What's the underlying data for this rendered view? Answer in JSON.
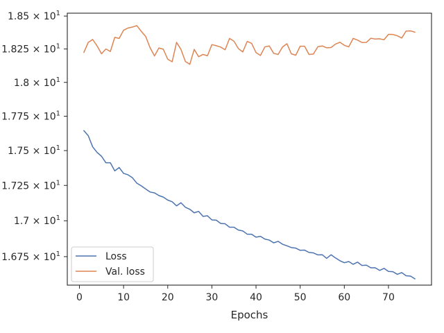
{
  "chart_data": {
    "type": "line",
    "title": "",
    "xlabel": "Epochs",
    "ylabel": "",
    "xlim": [
      -2.75,
      79.75
    ],
    "ylim": [
      16.554,
      18.522
    ],
    "x_ticks": [
      0,
      10,
      20,
      30,
      40,
      50,
      60,
      70
    ],
    "x_tick_labels": [
      "0",
      "10",
      "20",
      "30",
      "40",
      "50",
      "60",
      "70"
    ],
    "y_ticks": [
      16.75,
      17.0,
      17.25,
      17.5,
      17.75,
      18.0,
      18.25,
      18.5
    ],
    "y_tick_labels": [
      {
        "mantissa": "1.675",
        "base": "10",
        "exp": "1"
      },
      {
        "mantissa": "1.7",
        "base": "10",
        "exp": "1"
      },
      {
        "mantissa": "1.725",
        "base": "10",
        "exp": "1"
      },
      {
        "mantissa": "1.75",
        "base": "10",
        "exp": "1"
      },
      {
        "mantissa": "1.775",
        "base": "10",
        "exp": "1"
      },
      {
        "mantissa": "1.8",
        "base": "10",
        "exp": "1"
      },
      {
        "mantissa": "1.825",
        "base": "10",
        "exp": "1"
      },
      {
        "mantissa": "1.85",
        "base": "10",
        "exp": "1"
      }
    ],
    "y_scale": "log",
    "grid": false,
    "legend_position": "lower-left",
    "series": [
      {
        "name": "Loss",
        "color": "#4c72b0",
        "x": [
          1,
          2,
          3,
          4,
          5,
          6,
          7,
          8,
          9,
          10,
          11,
          12,
          13,
          14,
          15,
          16,
          17,
          18,
          19,
          20,
          21,
          22,
          23,
          24,
          25,
          26,
          27,
          28,
          29,
          30,
          31,
          32,
          33,
          34,
          35,
          36,
          37,
          38,
          39,
          40,
          41,
          42,
          43,
          44,
          45,
          46,
          47,
          48,
          49,
          50,
          51,
          52,
          53,
          54,
          55,
          56,
          57,
          58,
          59,
          60,
          61,
          62,
          63,
          64,
          65,
          66,
          67,
          68,
          69,
          70,
          71,
          72,
          73,
          74,
          75,
          76
        ],
        "y": [
          17.645,
          17.608,
          17.527,
          17.487,
          17.459,
          17.412,
          17.412,
          17.354,
          17.378,
          17.336,
          17.326,
          17.305,
          17.266,
          17.247,
          17.225,
          17.203,
          17.197,
          17.178,
          17.167,
          17.146,
          17.134,
          17.105,
          17.127,
          17.095,
          17.081,
          17.056,
          17.066,
          17.031,
          17.035,
          17.006,
          17.004,
          16.981,
          16.979,
          16.955,
          16.955,
          16.935,
          16.929,
          16.906,
          16.906,
          16.885,
          16.891,
          16.872,
          16.865,
          16.846,
          16.856,
          16.836,
          16.825,
          16.813,
          16.809,
          16.794,
          16.795,
          16.779,
          16.776,
          16.762,
          16.763,
          16.738,
          16.763,
          16.741,
          16.722,
          16.708,
          16.716,
          16.697,
          16.712,
          16.689,
          16.691,
          16.673,
          16.673,
          16.655,
          16.669,
          16.648,
          16.646,
          16.628,
          16.64,
          16.618,
          16.616,
          16.597
        ]
      },
      {
        "name": "Val. loss",
        "color": "#dd8452",
        "x": [
          1,
          2,
          3,
          4,
          5,
          6,
          7,
          8,
          9,
          10,
          11,
          12,
          13,
          14,
          15,
          16,
          17,
          18,
          19,
          20,
          21,
          22,
          23,
          24,
          25,
          26,
          27,
          28,
          29,
          30,
          31,
          32,
          33,
          34,
          35,
          36,
          37,
          38,
          39,
          40,
          41,
          42,
          43,
          44,
          45,
          46,
          47,
          48,
          49,
          50,
          51,
          52,
          53,
          54,
          55,
          56,
          57,
          58,
          59,
          60,
          61,
          62,
          63,
          64,
          65,
          66,
          67,
          68,
          69,
          70,
          71,
          72,
          73,
          74,
          75,
          76
        ],
        "y": [
          18.224,
          18.3,
          18.322,
          18.273,
          18.214,
          18.25,
          18.231,
          18.338,
          18.33,
          18.392,
          18.409,
          18.416,
          18.427,
          18.384,
          18.345,
          18.26,
          18.198,
          18.258,
          18.248,
          18.173,
          18.154,
          18.3,
          18.247,
          18.156,
          18.135,
          18.247,
          18.192,
          18.209,
          18.199,
          18.283,
          18.275,
          18.264,
          18.244,
          18.33,
          18.309,
          18.253,
          18.228,
          18.307,
          18.293,
          18.223,
          18.201,
          18.266,
          18.273,
          18.217,
          18.209,
          18.265,
          18.29,
          18.214,
          18.203,
          18.271,
          18.271,
          18.209,
          18.212,
          18.267,
          18.273,
          18.259,
          18.261,
          18.287,
          18.301,
          18.278,
          18.266,
          18.33,
          18.317,
          18.299,
          18.3,
          18.331,
          18.325,
          18.327,
          18.32,
          18.361,
          18.36,
          18.35,
          18.333,
          18.386,
          18.387,
          18.377
        ]
      }
    ]
  }
}
